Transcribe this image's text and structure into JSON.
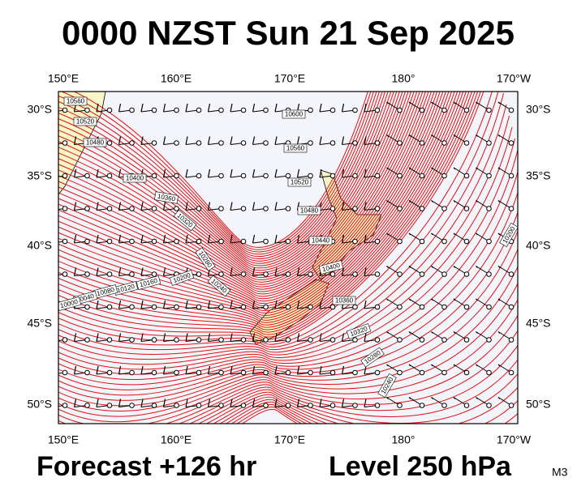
{
  "title": "0000 NZST Sun 21 Sep 2025",
  "lon_labels": [
    "150°E",
    "160°E",
    "170°E",
    "180°",
    "170°W"
  ],
  "lat_labels": [
    "30°S",
    "35°S",
    "40°S",
    "45°S",
    "50°S"
  ],
  "contour_labels": [
    "10560",
    "10520",
    "10480",
    "10400",
    "10360",
    "10320",
    "10280",
    "10240",
    "10200",
    "10160",
    "10120",
    "10080",
    "10040",
    "10000",
    "10600",
    "10560",
    "10520",
    "10480",
    "10440",
    "10400",
    "10360",
    "10320",
    "10280",
    "10240",
    "10200"
  ],
  "footer": {
    "forecast": "Forecast +126 hr",
    "level": "Level 250 hPa",
    "model": "M3"
  }
}
